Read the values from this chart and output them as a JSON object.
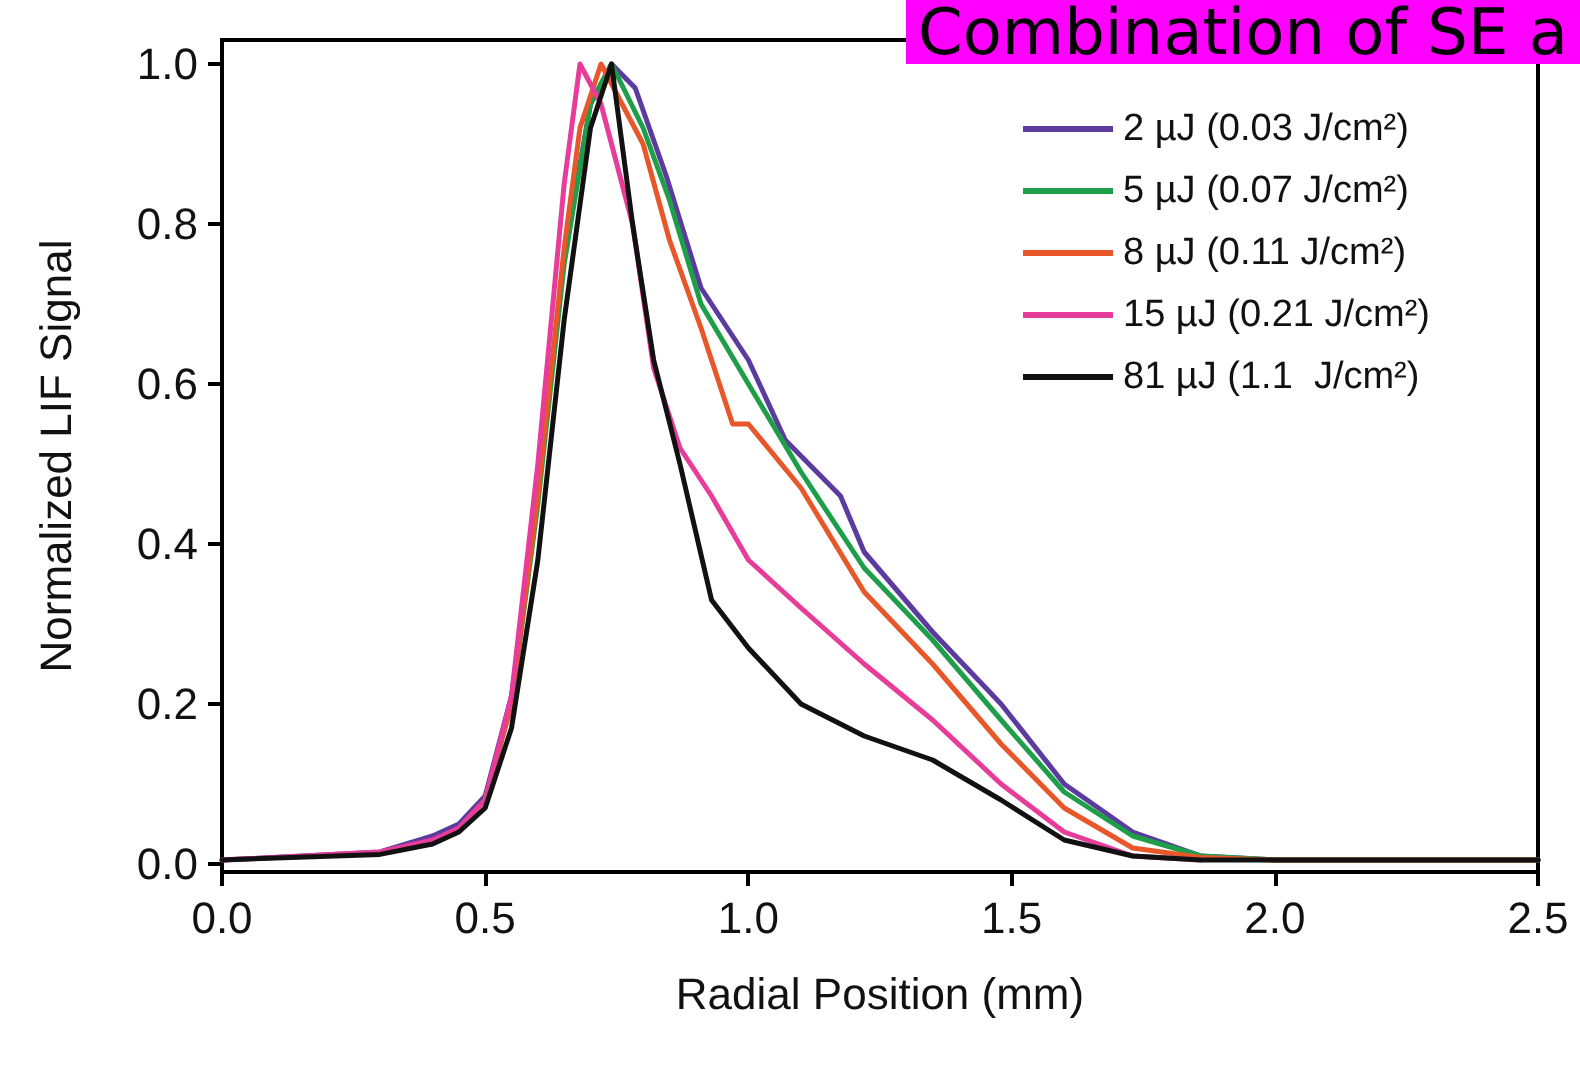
{
  "chart_data": {
    "type": "line",
    "xlabel": "Radial Position (mm)",
    "ylabel": "Normalized LIF Signal",
    "annotations": [
      "Combination of SE a"
    ],
    "xlim": [
      0,
      2.5
    ],
    "xticks": [
      {
        "value": 0,
        "label": "0.0"
      },
      {
        "value": 0.5,
        "label": "0.5"
      },
      {
        "value": 1,
        "label": "1.0"
      },
      {
        "value": 1.5,
        "label": "1.5"
      },
      {
        "value": 2,
        "label": "2.0"
      },
      {
        "value": 2.5,
        "label": "2.5"
      }
    ],
    "ylim": [
      -0.01,
      1.03
    ],
    "yticks": [
      {
        "value": 0,
        "label": "0.0"
      },
      0.2,
      0.4,
      0.6,
      0.8,
      {
        "value": 1,
        "label": "1.0"
      }
    ],
    "grid": false,
    "legend": "top right",
    "marker": "none",
    "line_style": "solid",
    "series": [
      {
        "name": "2 µJ (0.03 J/cm²)",
        "color": "#5b3c9e",
        "x": [
          0,
          0.3,
          0.4,
          0.45,
          0.5,
          0.55,
          0.6,
          0.65,
          0.7,
          0.74,
          0.785,
          0.844,
          0.91,
          1.0,
          1.07,
          1.1,
          1.175,
          1.22,
          1.35,
          1.48,
          1.6,
          1.73,
          1.86,
          2.0,
          2.5
        ],
        "values": [
          0.005,
          0.015,
          0.035,
          0.05,
          0.085,
          0.21,
          0.46,
          0.76,
          0.95,
          1.0,
          0.97,
          0.86,
          0.72,
          0.63,
          0.53,
          0.51,
          0.46,
          0.39,
          0.29,
          0.2,
          0.1,
          0.04,
          0.01,
          0.005,
          0.005
        ]
      },
      {
        "name": "5 µJ (0.07 J/cm²)",
        "color": "#1f9e4a",
        "x": [
          0.5,
          0.55,
          0.6,
          0.65,
          0.7,
          0.74,
          0.8,
          0.85,
          0.91,
          1.0,
          1.1,
          1.22,
          1.35,
          1.48,
          1.6,
          1.73,
          1.86,
          2.0,
          2.5
        ],
        "values": [
          0.08,
          0.2,
          0.45,
          0.75,
          0.95,
          1.0,
          0.92,
          0.83,
          0.7,
          0.6,
          0.49,
          0.37,
          0.28,
          0.18,
          0.09,
          0.035,
          0.01,
          0.005,
          0.005
        ]
      },
      {
        "name": "8 µJ (0.11 J/cm²)",
        "color": "#e8572a",
        "x": [
          0.45,
          0.5,
          0.55,
          0.6,
          0.65,
          0.68,
          0.72,
          0.8,
          0.85,
          0.91,
          0.97,
          1.0,
          1.1,
          1.22,
          1.35,
          1.48,
          1.6,
          1.73,
          1.86,
          2.0,
          2.5
        ],
        "values": [
          0.045,
          0.08,
          0.2,
          0.46,
          0.77,
          0.92,
          1.0,
          0.9,
          0.78,
          0.67,
          0.55,
          0.55,
          0.47,
          0.34,
          0.25,
          0.15,
          0.07,
          0.02,
          0.008,
          0.005,
          0.005
        ]
      },
      {
        "name": "15 µJ (0.21 J/cm²)",
        "color": "#e83c9a",
        "x": [
          0,
          0.3,
          0.4,
          0.45,
          0.5,
          0.55,
          0.6,
          0.65,
          0.68,
          0.72,
          0.78,
          0.82,
          0.87,
          0.93,
          1.0,
          1.1,
          1.22,
          1.35,
          1.48,
          1.6,
          1.73,
          1.86
        ],
        "values": [
          0.005,
          0.015,
          0.03,
          0.045,
          0.08,
          0.21,
          0.5,
          0.85,
          1.0,
          0.95,
          0.8,
          0.62,
          0.52,
          0.46,
          0.38,
          0.32,
          0.25,
          0.18,
          0.1,
          0.04,
          0.01,
          0.005
        ]
      },
      {
        "name": "81 µJ (1.1  J/cm²)",
        "color": "#111111",
        "x": [
          0,
          0.3,
          0.4,
          0.45,
          0.5,
          0.55,
          0.6,
          0.65,
          0.7,
          0.74,
          0.78,
          0.82,
          0.87,
          0.93,
          1.0,
          1.1,
          1.22,
          1.35,
          1.48,
          1.6,
          1.73,
          1.86,
          2.0,
          2.5
        ],
        "values": [
          0.005,
          0.012,
          0.025,
          0.04,
          0.07,
          0.17,
          0.38,
          0.68,
          0.92,
          1.0,
          0.8,
          0.63,
          0.5,
          0.33,
          0.27,
          0.2,
          0.16,
          0.13,
          0.08,
          0.03,
          0.01,
          0.005,
          0.005,
          0.005
        ]
      }
    ]
  }
}
